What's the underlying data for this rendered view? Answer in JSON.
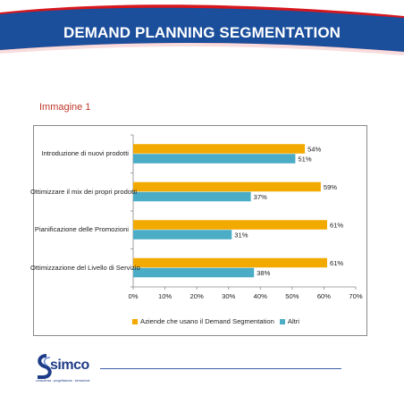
{
  "header": {
    "title": "DEMAND PLANNING SEGMENTATION"
  },
  "figure": {
    "caption": "Immagine 1"
  },
  "chart_data": {
    "type": "bar",
    "orientation": "horizontal",
    "categories": [
      "Introduzione di nuovi prodotti",
      "Ottimizzare il mix dei propri prodotti",
      "Pianificazione delle Promozioni",
      "Ottimizzazione del Livello di Servizio"
    ],
    "series": [
      {
        "name": "Aziende che usano il Demand Segmentation",
        "values": [
          54,
          59,
          61,
          61
        ],
        "labels": [
          "54%",
          "59%",
          "61%",
          "61%"
        ],
        "color": "#f2a900"
      },
      {
        "name": "Altri",
        "values": [
          51,
          37,
          31,
          38
        ],
        "labels": [
          "51%",
          "37%",
          "31%",
          "38%"
        ],
        "color": "#4bacc6"
      }
    ],
    "xlim": [
      0,
      70
    ],
    "xticks": [
      "0%",
      "10%",
      "20%",
      "30%",
      "40%",
      "50%",
      "60%",
      "70%"
    ],
    "grid": false,
    "legend_position": "bottom",
    "title": "",
    "xlabel": "",
    "ylabel": ""
  },
  "logo": {
    "name": "simco",
    "tagline": "consulenza - progettazione - formazione"
  },
  "colors": {
    "banner_red": "#d6171d",
    "banner_blue": "#1b4f9c",
    "accent_text": "#c0392b",
    "footer_blue": "#3c5fa8"
  }
}
